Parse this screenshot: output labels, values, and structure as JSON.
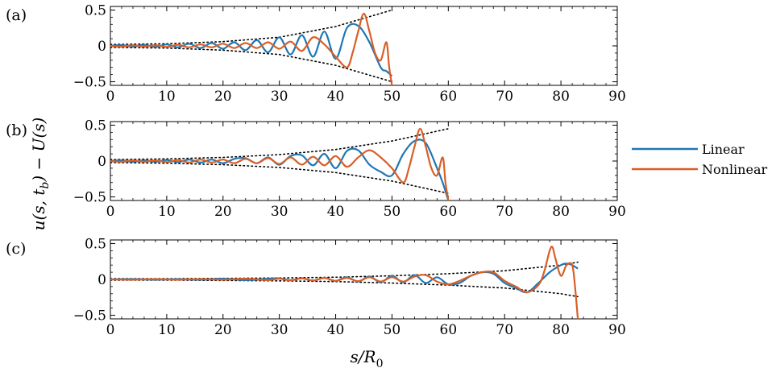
{
  "legend": {
    "entries": [
      {
        "name": "Linear",
        "color": "#1f77b4"
      },
      {
        "name": "Nonlinear",
        "color": "#d95f27"
      }
    ]
  },
  "axes_text": {
    "ylabel_main": "u(s, t",
    "ylabel_sub": "b",
    "ylabel_tail": ") − U(s)",
    "xlabel_main": "s/R",
    "xlabel_sub": "0"
  },
  "chart_data": [
    {
      "type": "line",
      "panel_label": "(a)",
      "xlim": [
        0,
        90
      ],
      "ylim": [
        -0.55,
        0.55
      ],
      "x_ticks": [
        0,
        10,
        20,
        30,
        40,
        50,
        60,
        70,
        80,
        90
      ],
      "y_ticks": [
        0.5,
        0,
        -0.5
      ],
      "y_tick_labels": [
        "0.5",
        "0",
        "−0.5"
      ],
      "grid": false,
      "wavefront": {
        "s_end": 50,
        "envelope": [
          [
            0,
            0.02
          ],
          [
            10,
            0.03
          ],
          [
            20,
            0.06
          ],
          [
            30,
            0.12
          ],
          [
            40,
            0.27
          ],
          [
            50,
            0.5
          ]
        ]
      },
      "series": [
        {
          "name": "Linear",
          "color": "#1f77b4",
          "x": [
            0,
            2,
            4,
            6,
            8,
            10,
            12,
            14,
            16,
            18,
            20,
            22,
            24,
            26,
            28,
            30,
            32,
            34,
            36,
            38,
            40,
            42,
            44,
            46,
            48,
            49,
            50
          ],
          "y": [
            0.0,
            0.01,
            -0.01,
            0.015,
            -0.015,
            0.02,
            -0.02,
            0.03,
            -0.03,
            0.04,
            -0.04,
            0.05,
            -0.06,
            0.08,
            -0.09,
            0.12,
            -0.12,
            0.15,
            -0.15,
            0.2,
            -0.18,
            0.25,
            0.28,
            0.05,
            -0.3,
            -0.35,
            -0.42
          ]
        },
        {
          "name": "Nonlinear",
          "color": "#d95f27",
          "x": [
            0,
            2,
            4,
            6,
            8,
            10,
            12,
            14,
            16,
            18,
            20,
            22,
            24,
            26,
            28,
            30,
            32,
            34,
            36,
            38,
            40,
            42,
            43,
            44,
            45,
            46,
            47,
            48,
            49,
            49.5,
            50
          ],
          "y": [
            0.0,
            -0.01,
            0.01,
            -0.01,
            0.01,
            -0.015,
            0.015,
            -0.02,
            0.02,
            -0.02,
            0.03,
            -0.03,
            0.04,
            -0.03,
            0.05,
            -0.04,
            0.06,
            -0.07,
            0.12,
            0.02,
            -0.15,
            -0.3,
            -0.1,
            0.2,
            0.45,
            0.2,
            -0.1,
            -0.2,
            0.05,
            -0.3,
            -0.55
          ]
        }
      ]
    },
    {
      "type": "line",
      "panel_label": "(b)",
      "xlim": [
        0,
        90
      ],
      "ylim": [
        -0.55,
        0.55
      ],
      "x_ticks": [
        0,
        10,
        20,
        30,
        40,
        50,
        60,
        70,
        80,
        90
      ],
      "y_ticks": [
        0.5,
        0,
        -0.5
      ],
      "y_tick_labels": [
        "0.5",
        "0",
        "−0.5"
      ],
      "grid": false,
      "wavefront": {
        "s_end": 60,
        "envelope": [
          [
            0,
            0.02
          ],
          [
            10,
            0.03
          ],
          [
            20,
            0.05
          ],
          [
            30,
            0.09
          ],
          [
            40,
            0.16
          ],
          [
            50,
            0.28
          ],
          [
            60,
            0.45
          ]
        ]
      },
      "series": [
        {
          "name": "Linear",
          "color": "#1f77b4",
          "x": [
            0,
            2,
            4,
            6,
            8,
            10,
            12,
            14,
            16,
            18,
            20,
            22,
            24,
            26,
            28,
            30,
            32,
            34,
            36,
            38,
            40,
            42,
            44,
            46,
            48,
            50,
            52,
            54,
            56,
            58,
            59,
            60
          ],
          "y": [
            0.0,
            0.01,
            -0.01,
            0.01,
            -0.01,
            0.015,
            -0.015,
            0.02,
            -0.02,
            0.02,
            -0.03,
            0.03,
            0.04,
            -0.03,
            0.05,
            -0.05,
            0.07,
            0.08,
            -0.06,
            0.1,
            -0.1,
            0.14,
            0.15,
            -0.05,
            -0.15,
            -0.2,
            0.1,
            0.28,
            0.25,
            -0.1,
            -0.3,
            -0.55
          ]
        },
        {
          "name": "Nonlinear",
          "color": "#d95f27",
          "x": [
            0,
            2,
            4,
            6,
            8,
            10,
            12,
            14,
            16,
            18,
            20,
            22,
            24,
            26,
            28,
            30,
            32,
            34,
            36,
            38,
            40,
            42,
            44,
            46,
            48,
            50,
            52,
            53,
            54,
            55,
            56,
            57,
            58,
            59,
            59.5,
            60
          ],
          "y": [
            0.0,
            -0.01,
            0.01,
            -0.01,
            0.01,
            -0.015,
            0.015,
            -0.02,
            0.02,
            -0.02,
            0.02,
            -0.03,
            0.03,
            -0.03,
            0.04,
            -0.04,
            0.05,
            -0.05,
            0.06,
            -0.06,
            0.07,
            -0.08,
            0.05,
            0.15,
            0.05,
            -0.1,
            -0.3,
            -0.1,
            0.2,
            0.45,
            0.2,
            -0.1,
            -0.2,
            0.05,
            -0.3,
            -0.55
          ]
        }
      ]
    },
    {
      "type": "line",
      "panel_label": "(c)",
      "xlim": [
        0,
        90
      ],
      "ylim": [
        -0.55,
        0.55
      ],
      "x_ticks": [
        0,
        10,
        20,
        30,
        40,
        50,
        60,
        70,
        80,
        90
      ],
      "y_ticks": [
        0.5,
        0,
        -0.5
      ],
      "y_tick_labels": [
        "0.5",
        "0",
        "−0.5"
      ],
      "grid": false,
      "wavefront": {
        "s_end": 83,
        "envelope": [
          [
            0,
            0.01
          ],
          [
            10,
            0.01
          ],
          [
            20,
            0.015
          ],
          [
            30,
            0.02
          ],
          [
            40,
            0.03
          ],
          [
            50,
            0.05
          ],
          [
            60,
            0.08
          ],
          [
            70,
            0.12
          ],
          [
            80,
            0.2
          ],
          [
            83,
            0.24
          ]
        ]
      },
      "series": [
        {
          "name": "Linear",
          "color": "#1f77b4",
          "x": [
            0,
            4,
            8,
            12,
            16,
            20,
            24,
            28,
            30,
            32,
            34,
            36,
            38,
            40,
            42,
            44,
            46,
            48,
            50,
            52,
            54,
            56,
            58,
            60,
            62,
            64,
            66,
            68,
            70,
            72,
            74,
            76,
            78,
            80,
            81,
            82,
            83
          ],
          "y": [
            0.0,
            0.005,
            -0.005,
            0.005,
            -0.005,
            0.01,
            -0.01,
            0.01,
            0.015,
            -0.01,
            0.015,
            -0.015,
            0.02,
            -0.02,
            0.03,
            -0.03,
            0.04,
            -0.04,
            0.05,
            -0.04,
            0.06,
            -0.05,
            0.03,
            -0.07,
            -0.05,
            0.05,
            0.1,
            0.08,
            -0.05,
            -0.12,
            -0.18,
            -0.05,
            0.1,
            0.2,
            0.22,
            0.2,
            0.15
          ]
        },
        {
          "name": "Nonlinear",
          "color": "#d95f27",
          "x": [
            0,
            4,
            8,
            12,
            16,
            20,
            24,
            28,
            30,
            32,
            34,
            36,
            38,
            40,
            42,
            44,
            46,
            48,
            50,
            52,
            54,
            56,
            58,
            60,
            62,
            64,
            66,
            68,
            70,
            72,
            74,
            76,
            77,
            78,
            78.5,
            79,
            80,
            81,
            82,
            82.5,
            83
          ],
          "y": [
            0.0,
            -0.005,
            0.005,
            -0.005,
            0.005,
            -0.005,
            0.01,
            -0.01,
            0.01,
            -0.015,
            0.015,
            -0.015,
            0.02,
            -0.02,
            0.02,
            -0.025,
            0.03,
            -0.03,
            0.03,
            -0.03,
            0.04,
            0.06,
            -0.03,
            -0.07,
            -0.02,
            0.05,
            0.1,
            0.1,
            -0.02,
            -0.1,
            -0.18,
            -0.08,
            0.1,
            0.4,
            0.45,
            0.3,
            0.05,
            0.2,
            0.2,
            -0.1,
            -0.55
          ]
        }
      ]
    }
  ]
}
